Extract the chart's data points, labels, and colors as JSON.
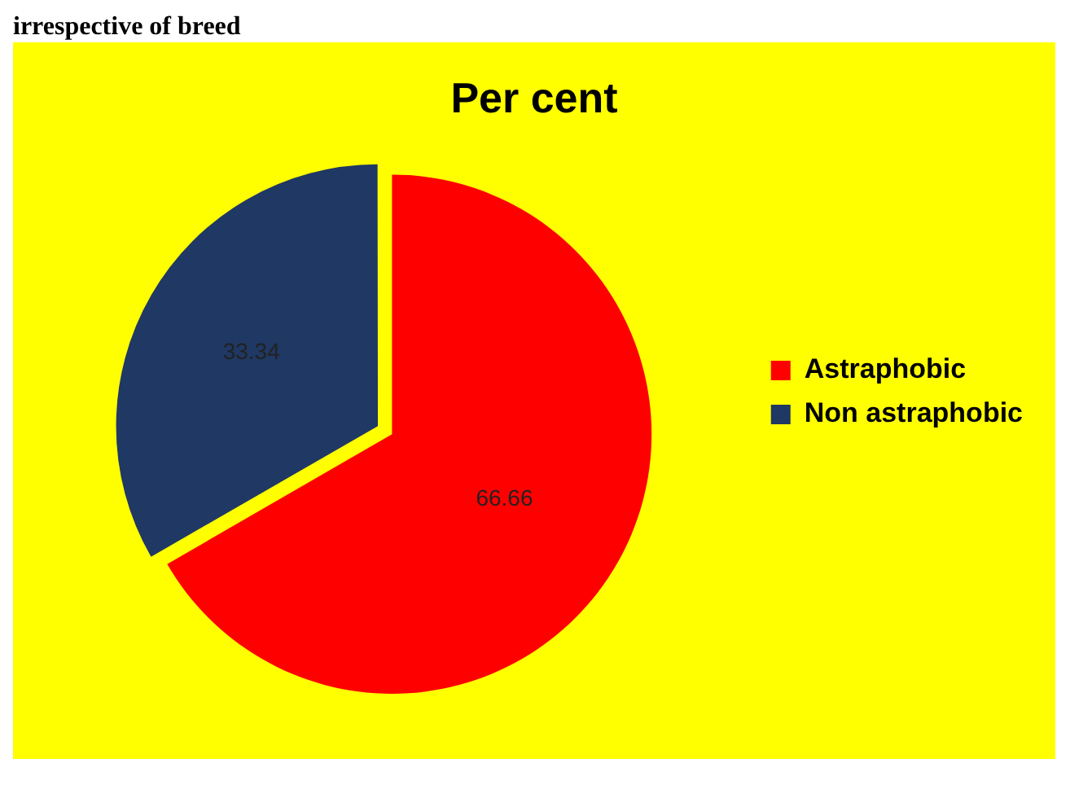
{
  "chart_data": {
    "type": "pie",
    "title": "Per cent",
    "annotations": [
      "irrespective of breed"
    ],
    "categories": [
      "Astraphobic",
      "Non astraphobic"
    ],
    "values": [
      66.66,
      33.34
    ],
    "colors": [
      "#ff0000",
      "#1f3864"
    ],
    "data_labels": true,
    "legend": "right"
  }
}
